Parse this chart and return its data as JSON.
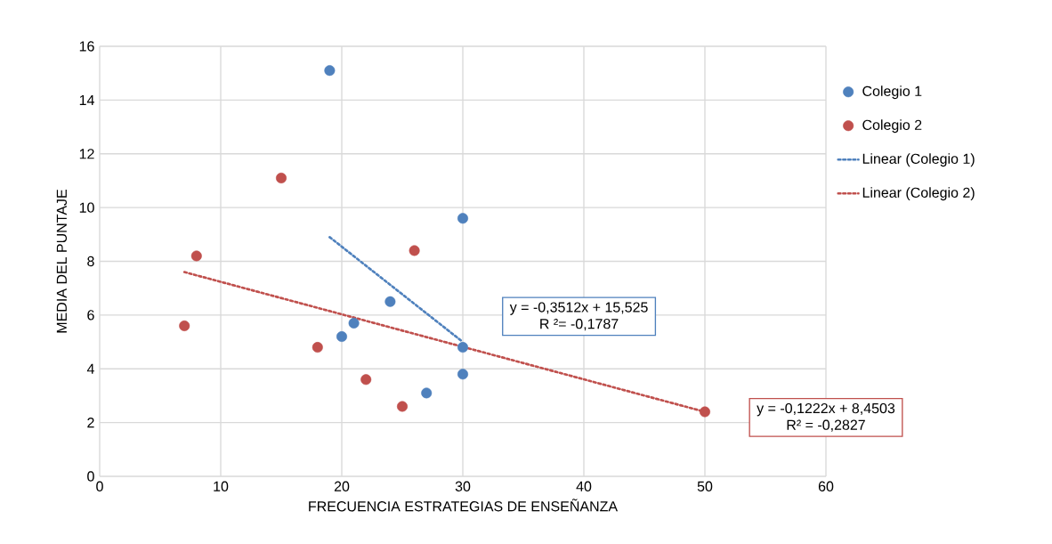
{
  "chart_data": {
    "type": "scatter",
    "xlabel": "FRECUENCIA ESTRATEGIAS DE ENSEÑANZA",
    "ylabel": "MEDIA DEL PUNTAJE",
    "xlim": [
      0,
      60
    ],
    "xticks": [
      0,
      10,
      20,
      30,
      40,
      50,
      60
    ],
    "ylim": [
      0,
      16
    ],
    "yticks": [
      0,
      2,
      4,
      6,
      8,
      10,
      12,
      14,
      16
    ],
    "grid": true,
    "legend": "right",
    "series": [
      {
        "name": "Colegio 1",
        "marker": "circle",
        "color": "#4f81bd",
        "x": [
          19,
          30,
          24,
          21,
          20,
          30,
          30,
          27
        ],
        "values": [
          15.1,
          9.6,
          6.5,
          5.7,
          5.2,
          4.8,
          3.8,
          3.1
        ]
      },
      {
        "name": "Colegio 2",
        "marker": "circle",
        "color": "#c0504d",
        "x": [
          15,
          8,
          26,
          7,
          18,
          22,
          25,
          50
        ],
        "values": [
          11.1,
          8.2,
          8.4,
          5.6,
          4.8,
          3.6,
          2.6,
          2.4
        ]
      },
      {
        "name": "Linear (Colegio 1)",
        "type": "line",
        "line_style": "dotted",
        "color": "#4f81bd",
        "x": [
          19,
          30
        ],
        "values": [
          8.9,
          5.0
        ]
      },
      {
        "name": "Linear (Colegio 2)",
        "type": "line",
        "line_style": "dotted",
        "color": "#c0504d",
        "x": [
          7,
          50
        ],
        "values": [
          7.6,
          2.4
        ]
      }
    ],
    "annotations": [
      "y = -0,3512x + 15,525",
      "R ²= -0,1787",
      "y = -0,1222x + 8,4503",
      "R² = -0,2827"
    ]
  }
}
